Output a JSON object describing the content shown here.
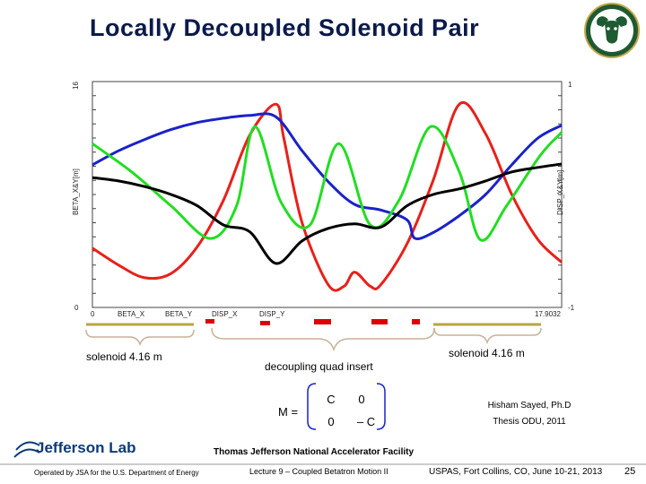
{
  "slide": {
    "title": "Locally  Decoupled Solenoid Pair",
    "page_number": "25"
  },
  "colors": {
    "title": "#0b1a4a",
    "beta_x": "#e8201a",
    "beta_y": "#1a22c8",
    "disp_x": "#22dd22",
    "disp_y": "#000000",
    "solenoid_bar": "#b5a642",
    "quad": "#dd0000",
    "brace": "#c7b299",
    "logo_green": "#1e5a32"
  },
  "chart_data": {
    "type": "line",
    "title": "Locally  Decoupled Solenoid Pair",
    "xlim": [
      0,
      17.9032
    ],
    "x_start_label": "0",
    "x_end_label": "17.9032",
    "left_axis": {
      "label": "BETA_X&Y[m]",
      "ylim": [
        0,
        16
      ],
      "top_tick": "16",
      "bottom_tick": "0"
    },
    "right_axis": {
      "label": "DISP_X&Y[m]",
      "ylim": [
        -1,
        1
      ],
      "top_tick": "1",
      "bottom_tick": "-1"
    },
    "legend": [
      "BETA_X",
      "BETA_Y",
      "DISP_X",
      "DISP_Y"
    ],
    "series": [
      {
        "name": "BETA_X",
        "axis": "left",
        "color": "#e8201a",
        "x": [
          0,
          1,
          2,
          3,
          4,
          5,
          6,
          7,
          7.3,
          8,
          9,
          9.6,
          10,
          10.6,
          11,
          12,
          13,
          14,
          15,
          16,
          17,
          17.9032
        ],
        "y": [
          4.2,
          3.0,
          2.1,
          2.4,
          4.3,
          7.6,
          12.2,
          14.4,
          12,
          6,
          1.6,
          1.5,
          2.5,
          1.5,
          1.6,
          4.5,
          9.0,
          14.4,
          12.3,
          8.0,
          4.8,
          3.2
        ]
      },
      {
        "name": "BETA_Y",
        "axis": "left",
        "color": "#1a22c8",
        "x": [
          0,
          1,
          2,
          3,
          4,
          5,
          6,
          7,
          8,
          9,
          10,
          11,
          12,
          12.3,
          13,
          14,
          15,
          16,
          17,
          17.9032
        ],
        "y": [
          10.1,
          11.1,
          11.9,
          12.6,
          13.1,
          13.4,
          13.6,
          13.5,
          11.1,
          8.9,
          7.3,
          6.9,
          6.2,
          4.9,
          5.3,
          6.5,
          8.0,
          10.1,
          12.0,
          12.9
        ]
      },
      {
        "name": "DISP_X",
        "axis": "right",
        "color": "#22dd22",
        "x": [
          0,
          1.5,
          3,
          4.5,
          5.5,
          6.2,
          7.2,
          8.3,
          9.4,
          10.6,
          11.7,
          12.9,
          14,
          14.8,
          15.8,
          17.1,
          17.9032
        ],
        "y": [
          0.45,
          0.2,
          -0.1,
          -0.39,
          -0.1,
          0.6,
          -0.07,
          -0.27,
          0.45,
          -0.27,
          -0.05,
          0.6,
          0.2,
          -0.4,
          -0.1,
          0.35,
          0.55
        ]
      },
      {
        "name": "DISP_Y",
        "axis": "right",
        "color": "#000000",
        "x": [
          0,
          1,
          2,
          3,
          4,
          5,
          6,
          7,
          8,
          9,
          10,
          11,
          12,
          13,
          14,
          15,
          16,
          17,
          17.9032
        ],
        "y": [
          0.15,
          0.12,
          0.07,
          0.0,
          -0.1,
          -0.27,
          -0.33,
          -0.61,
          -0.41,
          -0.3,
          -0.26,
          -0.29,
          -0.1,
          0.0,
          0.05,
          0.12,
          0.2,
          0.24,
          0.27
        ]
      }
    ]
  },
  "lattice": {
    "solenoid_left_label": "solenoid  4.16 m",
    "solenoid_right_label": "solenoid  4.16 m",
    "insert_label": "decoupling quad insert"
  },
  "matrix": {
    "label": "M =",
    "cells": [
      [
        "C",
        "0"
      ],
      [
        "0",
        "– C"
      ]
    ]
  },
  "author": {
    "line1": "Hisham  Sayed, Ph.D",
    "line2": "Thesis ODU,  2011"
  },
  "footer": {
    "lab_name": "Jefferson Lab",
    "operated_by": "Operated by JSA for the U.S. Department of Energy",
    "facility": "Thomas Jefferson National Accelerator Facility",
    "lecture": "Lecture 9 – Coupled Betatron Motion II",
    "course": "USPAS, Fort Collins, CO, June 10-21, 2013"
  }
}
